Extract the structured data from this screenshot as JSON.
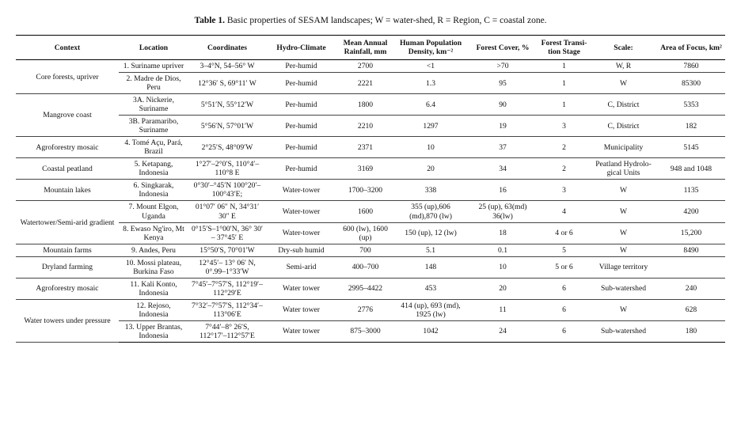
{
  "caption": {
    "label": "Table 1.",
    "text": "Basic properties of SESAM landscapes; W = water-shed, R = Region, C = coastal zone."
  },
  "table": {
    "headers": [
      "Context",
      "Location",
      "Coordinates",
      "Hydro-Climate",
      "Mean Annual Rainfall, mm",
      "Human Population Density, km⁻²",
      "Forest Cover, %",
      "Forest Transi-tion Stage",
      "Scale:",
      "Area of Focus, km²"
    ],
    "groups": [
      {
        "context": "Core forests, upriver",
        "rows": [
          [
            "1. Suriname upriver",
            "3–4°N, 54–56° W",
            "Per-humid",
            "2700",
            "<1",
            ">70",
            "1",
            "W, R",
            "7860"
          ],
          [
            "2. Madre de Dios, Peru",
            "12°36′ S, 69°11′ W",
            "Per-humid",
            "2221",
            "1.3",
            "95",
            "1",
            "W",
            "85300"
          ]
        ]
      },
      {
        "context": "Mangrove coast",
        "rows": [
          [
            "3A. Nickerie, Suriname",
            "5°51′N, 55°12′W",
            "Per-humid",
            "1800",
            "6.4",
            "90",
            "1",
            "C, District",
            "5353"
          ],
          [
            "3B. Paramaribo, Suriname",
            "5°56′N, 57°01′W",
            "Per-humid",
            "2210",
            "1297",
            "19",
            "3",
            "C, District",
            "182"
          ]
        ]
      },
      {
        "context": "Agroforestry mosaic",
        "rows": [
          [
            "4. Tomé Açu, Pará, Brazil",
            "2°25′S, 48°09′W",
            "Per-humid",
            "2371",
            "10",
            "37",
            "2",
            "Municipality",
            "5145"
          ]
        ]
      },
      {
        "context": "Coastal peatland",
        "rows": [
          [
            "5. Ketapang, Indonesia",
            "1°27′–2°0′S, 110°4′–110°8 E",
            "Per-humid",
            "3169",
            "20",
            "34",
            "2",
            "Peatland Hydrolo-gical Units",
            "948 and 1048"
          ]
        ]
      },
      {
        "context": "Mountain lakes",
        "rows": [
          [
            "6. Singkarak, Indonesia",
            "0°30′–°45′N 100°20′–100°43′E;",
            "Water-tower",
            "1700–3200",
            "338",
            "16",
            "3",
            "W",
            "1135"
          ]
        ]
      },
      {
        "context": "Watertower/Semi-arid gradient",
        "rows": [
          [
            "7. Mount Elgon, Uganda",
            "01°07′ 06″ N, 34°31′ 30″ E",
            "Water-tower",
            "1600",
            "355 (up),606 (md),870 (lw)",
            "25 (up), 63(md) 36(lw)",
            "4",
            "W",
            "4200"
          ],
          [
            "8. Ewaso Ng'iro, Mt Kenya",
            "0°15′S–1°00′N, 36° 30′ – 37°45′ E",
            "Water-tower",
            "600 (lw), 1600 (up)",
            "150 (up), 12 (lw)",
            "18",
            "4 or 6",
            "W",
            "15,200"
          ]
        ]
      },
      {
        "context": "Mountain farms",
        "rows": [
          [
            "9. Andes, Peru",
            "15°50′S, 70°01′W",
            "Dry-sub humid",
            "700",
            "5.1",
            "0.1",
            "5",
            "W",
            "8490"
          ]
        ]
      },
      {
        "context": "Dryland farming",
        "rows": [
          [
            "10. Mossi plateau, Burkina Faso",
            "12°45′– 13° 06′ N, 0°.99–1°33′W",
            "Semi-arid",
            "400–700",
            "148",
            "10",
            "5 or 6",
            "Village territory",
            null
          ]
        ]
      },
      {
        "context": "Agroforestry mosaic",
        "rows": [
          [
            "11. Kali Konto, Indonesia",
            "7°45′–7°57′S, 112°19′–112°29′E",
            "Water tower",
            "2995–4422",
            "453",
            "20",
            "6",
            "Sub-watershed",
            "240"
          ]
        ]
      },
      {
        "context": "Water towers under pressure",
        "rows": [
          [
            "12. Rejoso, Indonesia",
            "7°32′–7°57′S, 112°34′–113°06′E",
            "Water tower",
            "2776",
            "414 (up), 693 (md), 1925 (lw)",
            "11",
            "6",
            "W",
            "628"
          ],
          [
            "13. Upper Brantas, Indonesia",
            "7°44′–8° 26′S, 112°17′–112°57′E",
            "Water tower",
            "875–3000",
            "1042",
            "24",
            "6",
            "Sub-watershed",
            "180"
          ]
        ]
      }
    ]
  }
}
